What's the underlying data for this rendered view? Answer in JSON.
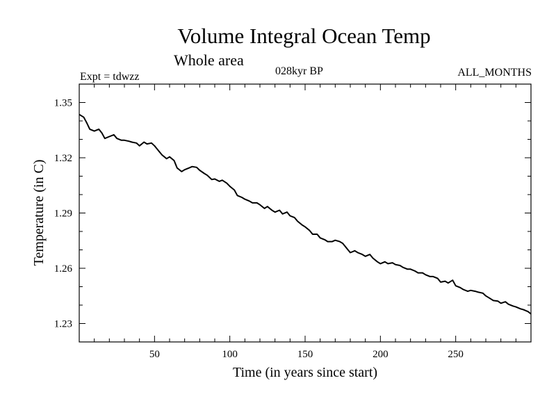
{
  "chart_data": {
    "type": "line",
    "title": "Volume Integral Ocean Temp",
    "subtitle": "Whole area",
    "annotations": {
      "experiment": "Expt = tdwzz",
      "period": "028kyr BP",
      "months": "ALL_MONTHS"
    },
    "xlabel": "Time (in years since start)",
    "ylabel": "Temperature (in C)",
    "xlim": [
      0,
      300
    ],
    "ylim": [
      1.22,
      1.36
    ],
    "xticks": [
      50,
      100,
      150,
      200,
      250
    ],
    "yticks": [
      1.23,
      1.26,
      1.29,
      1.32,
      1.35
    ],
    "ytick_labels": [
      "1.23",
      "1.26",
      "1.29",
      "1.32",
      "1.35"
    ],
    "grid": false,
    "series": [
      {
        "x": [
          0,
          3,
          5,
          7,
          10,
          13,
          15,
          17,
          20,
          23,
          25,
          28,
          30,
          33,
          35,
          38,
          40,
          43,
          45,
          48,
          50,
          53,
          55,
          58,
          60,
          63,
          65,
          68,
          70,
          73,
          75,
          78,
          80,
          83,
          85,
          88,
          90,
          93,
          95,
          98,
          100,
          103,
          105,
          108,
          110,
          113,
          115,
          118,
          120,
          123,
          125,
          128,
          130,
          133,
          135,
          138,
          140,
          143,
          145,
          148,
          150,
          153,
          155,
          158,
          160,
          163,
          165,
          168,
          170,
          173,
          175,
          178,
          180,
          183,
          185,
          188,
          190,
          193,
          195,
          198,
          200,
          203,
          205,
          208,
          210,
          213,
          215,
          218,
          220,
          223,
          225,
          228,
          230,
          233,
          235,
          238,
          240,
          243,
          245,
          248,
          250,
          253,
          255,
          258,
          260,
          263,
          265,
          268,
          270,
          273,
          275,
          278,
          280,
          283,
          285,
          288,
          290,
          293,
          295,
          298,
          300
        ],
        "y": [
          1.3435,
          1.342,
          1.339,
          1.3355,
          1.3345,
          1.3355,
          1.3335,
          1.3305,
          1.3315,
          1.3325,
          1.3305,
          1.3295,
          1.3295,
          1.329,
          1.3285,
          1.328,
          1.3265,
          1.3285,
          1.3275,
          1.328,
          1.3265,
          1.3235,
          1.3215,
          1.3195,
          1.3205,
          1.3185,
          1.3145,
          1.3125,
          1.3135,
          1.3145,
          1.3152,
          1.3148,
          1.3132,
          1.3115,
          1.3105,
          1.3082,
          1.3085,
          1.3072,
          1.3078,
          1.3062,
          1.3045,
          1.3025,
          1.2995,
          1.2985,
          1.2975,
          1.2965,
          1.2955,
          1.2955,
          1.2945,
          1.2925,
          1.2935,
          1.2915,
          1.2905,
          1.2915,
          1.2895,
          1.2905,
          1.2885,
          1.2875,
          1.2855,
          1.2835,
          1.2825,
          1.2805,
          1.2785,
          1.2785,
          1.2765,
          1.2755,
          1.2745,
          1.2745,
          1.2752,
          1.2745,
          1.2735,
          1.2705,
          1.2685,
          1.2695,
          1.2685,
          1.2675,
          1.2665,
          1.2675,
          1.2655,
          1.2635,
          1.2625,
          1.2635,
          1.2625,
          1.263,
          1.262,
          1.2615,
          1.2605,
          1.2595,
          1.2595,
          1.2585,
          1.2575,
          1.2575,
          1.2565,
          1.2555,
          1.2555,
          1.2545,
          1.2525,
          1.253,
          1.252,
          1.2535,
          1.2505,
          1.2495,
          1.2485,
          1.2475,
          1.248,
          1.2475,
          1.247,
          1.2465,
          1.245,
          1.2435,
          1.2425,
          1.2422,
          1.241,
          1.2418,
          1.2405,
          1.2395,
          1.239,
          1.238,
          1.2375,
          1.2365,
          1.2352
        ]
      }
    ]
  }
}
